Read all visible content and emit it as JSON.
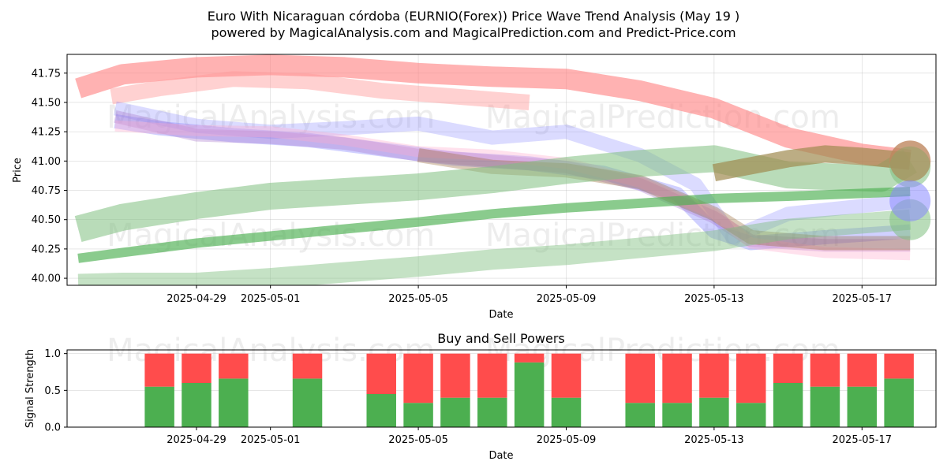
{
  "chart_data": [
    {
      "type": "line",
      "title_line1": "Euro With Nicaraguan córdoba (EURNIO(Forex)) Price Wave Trend Analysis (May 19 )",
      "title_line2": "powered by MagicalAnalysis.com and MagicalPrediction.com and Predict-Price.com",
      "xlabel": "Date",
      "ylabel": "Price",
      "x_ticks": [
        "2025-04-29",
        "2025-05-01",
        "2025-05-05",
        "2025-05-09",
        "2025-05-13",
        "2025-05-17"
      ],
      "x_tick_days": [
        2,
        4,
        8,
        12,
        16,
        20
      ],
      "xlim_days": [
        -1.5,
        22.0
      ],
      "y_ticks": [
        "40.00",
        "40.25",
        "40.50",
        "40.75",
        "41.00",
        "41.25",
        "41.50",
        "41.75"
      ],
      "ylim": [
        39.94,
        41.91
      ],
      "watermark": "MagicalAnalysis.com     MagicalPrediction.com",
      "series": [
        {
          "name": "red upper band",
          "color": "#ff7f7f",
          "x": [
            -1.2,
            0,
            2,
            4,
            6,
            8,
            10,
            12,
            14,
            16,
            18,
            20,
            21.3
          ],
          "y": [
            41.62,
            41.74,
            41.8,
            41.82,
            41.8,
            41.75,
            41.72,
            41.7,
            41.6,
            41.45,
            41.2,
            41.06,
            41.01
          ]
        },
        {
          "name": "red mid band",
          "color": "#ff9a9a",
          "x": [
            -0.3,
            1,
            3,
            5,
            7,
            9,
            11
          ],
          "y": [
            41.55,
            41.62,
            41.7,
            41.68,
            41.6,
            41.55,
            41.5
          ]
        },
        {
          "name": "blue wave 1",
          "color": "#7777ff",
          "x": [
            -0.2,
            1,
            3,
            5,
            7,
            9,
            11,
            13,
            15,
            16,
            17,
            19,
            21.3
          ],
          "y": [
            41.34,
            41.28,
            41.22,
            41.18,
            41.1,
            41.02,
            40.98,
            40.9,
            40.72,
            40.4,
            40.3,
            40.35,
            40.4
          ]
        },
        {
          "name": "blue wave 2",
          "color": "#8888ff",
          "x": [
            -0.2,
            2,
            4,
            6,
            8,
            10,
            12,
            14,
            15.5,
            16.5,
            18,
            21.3
          ],
          "y": [
            41.45,
            41.3,
            41.25,
            41.28,
            41.32,
            41.2,
            41.25,
            41.05,
            40.8,
            40.35,
            40.55,
            40.66
          ]
        },
        {
          "name": "purple wave",
          "color": "#aa77cc",
          "x": [
            -0.2,
            2,
            4,
            6,
            8,
            10,
            12,
            14,
            16,
            17,
            19,
            21.3
          ],
          "y": [
            41.38,
            41.22,
            41.2,
            41.15,
            41.05,
            41.0,
            40.95,
            40.8,
            40.52,
            40.32,
            40.28,
            40.28
          ]
        },
        {
          "name": "pink wave",
          "color": "#ffaacc",
          "x": [
            -0.2,
            2,
            4,
            6,
            8,
            10,
            12,
            14,
            16,
            17,
            19,
            21.3
          ],
          "y": [
            41.3,
            41.26,
            41.25,
            41.18,
            41.08,
            41.05,
            40.98,
            40.82,
            40.55,
            40.3,
            40.22,
            40.2
          ]
        },
        {
          "name": "brown wave",
          "color": "#996633",
          "x": [
            8,
            10,
            12,
            14,
            16,
            17,
            19,
            21.3
          ],
          "y": [
            41.05,
            40.95,
            40.92,
            40.82,
            40.55,
            40.35,
            40.3,
            40.3
          ]
        },
        {
          "name": "green upper band",
          "color": "#7fbf7f",
          "x": [
            -1.2,
            0,
            2,
            4,
            6,
            8,
            10,
            12,
            14,
            16,
            18,
            20.5,
            21.3
          ],
          "y": [
            40.42,
            40.52,
            40.62,
            40.7,
            40.74,
            40.78,
            40.84,
            40.92,
            40.98,
            41.02,
            40.88,
            40.85,
            41.0
          ]
        },
        {
          "name": "green mid line",
          "color": "#4caf50",
          "x": [
            -1.2,
            0,
            2,
            4,
            6,
            8,
            10,
            12,
            14,
            16,
            18,
            21.3
          ],
          "y": [
            40.17,
            40.22,
            40.3,
            40.36,
            40.42,
            40.48,
            40.55,
            40.6,
            40.64,
            40.68,
            40.7,
            40.74
          ]
        },
        {
          "name": "green lower band",
          "color": "#7fbf7f",
          "x": [
            -1.2,
            0,
            2,
            4,
            6,
            8,
            10,
            12,
            14,
            16,
            18,
            21.3
          ],
          "y": [
            39.95,
            39.96,
            39.96,
            40.0,
            40.05,
            40.1,
            40.16,
            40.2,
            40.26,
            40.32,
            40.42,
            40.5
          ]
        },
        {
          "name": "olive arrow",
          "color": "#a08a50",
          "x": [
            16,
            17,
            18,
            19,
            20,
            21.3
          ],
          "y": [
            40.9,
            40.96,
            41.02,
            41.06,
            41.04,
            41.0
          ]
        }
      ],
      "end_markers": [
        {
          "y": 41.0,
          "color": "#ff7f7f"
        },
        {
          "y": 40.95,
          "color": "#7fbf7f"
        },
        {
          "y": 41.0,
          "color": "#a08a50"
        },
        {
          "y": 40.5,
          "color": "#7fbf7f"
        },
        {
          "y": 40.66,
          "color": "#8888ff"
        }
      ]
    },
    {
      "type": "bar",
      "title": "Buy and Sell Powers",
      "xlabel": "Date",
      "ylabel": "Signal Strength",
      "x_ticks": [
        "2025-04-29",
        "2025-05-01",
        "2025-05-05",
        "2025-05-09",
        "2025-05-13",
        "2025-05-17"
      ],
      "x_tick_days": [
        2,
        4,
        8,
        12,
        16,
        20
      ],
      "xlim_days": [
        -1.5,
        22.0
      ],
      "y_ticks": [
        "0.0",
        "0.5",
        "1.0"
      ],
      "ylim": [
        0,
        1.05
      ],
      "buy_color": "#4caf50",
      "sell_color": "#ff4c4c",
      "days": [
        1,
        2,
        3,
        5,
        7,
        8,
        9,
        10,
        11,
        12,
        14,
        15,
        16,
        17,
        18,
        19,
        20,
        21
      ],
      "buy": [
        0.55,
        0.6,
        0.66,
        0.66,
        0.45,
        0.33,
        0.4,
        0.4,
        0.88,
        0.4,
        0.33,
        0.33,
        0.4,
        0.33,
        0.6,
        0.55,
        0.55,
        0.66
      ],
      "sell": [
        0.45,
        0.4,
        0.34,
        0.34,
        0.55,
        0.67,
        0.6,
        0.6,
        0.12,
        0.6,
        0.67,
        0.67,
        0.6,
        0.67,
        0.4,
        0.45,
        0.45,
        0.34
      ],
      "watermark": "MagicalAnalysis.com     MagicalPrediction.com"
    }
  ]
}
